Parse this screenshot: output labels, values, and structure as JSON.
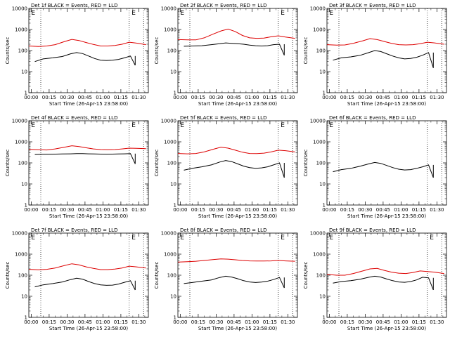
{
  "ylabel": "Counts/sec",
  "xlabel": "Start Time (26-Apr-15 23:58:00)",
  "x_ticks": [
    "00:00",
    "00:15",
    "00:30",
    "00:45",
    "01:00",
    "01:15",
    "01:30"
  ],
  "y_ticks": [
    "1",
    "10",
    "100",
    "1000",
    "10000"
  ],
  "colors": {
    "events": "#000000",
    "lld": "#dd0000"
  },
  "chart_data": [
    {
      "type": "line",
      "title": "Det 1f BLACK = Events, RED = LLD",
      "x_range_min": [
        0,
        100
      ],
      "ylim": [
        1,
        10000
      ],
      "y_scale": "log",
      "markers": [
        "E",
        "E"
      ],
      "vlines_min": [
        10,
        84,
        96
      ],
      "data_end_min": 89,
      "series": [
        {
          "name": "Events",
          "color": "#000000",
          "x": [
            5,
            12,
            20,
            28,
            35,
            40,
            45,
            50,
            55,
            60,
            65,
            70,
            75,
            80,
            85,
            89
          ],
          "y": [
            30,
            40,
            45,
            52,
            70,
            80,
            72,
            55,
            42,
            35,
            34,
            35,
            38,
            45,
            55,
            20
          ]
        },
        {
          "name": "LLD",
          "color": "#dd0000",
          "x": [
            0,
            8,
            15,
            22,
            30,
            36,
            42,
            48,
            54,
            60,
            66,
            72,
            78,
            84,
            90,
            98
          ],
          "y": [
            165,
            155,
            165,
            190,
            270,
            340,
            300,
            240,
            195,
            165,
            165,
            175,
            200,
            250,
            225,
            190
          ]
        }
      ]
    },
    {
      "type": "line",
      "title": "Det 2f BLACK = Events, RED = LLD",
      "x_range_min": [
        0,
        100
      ],
      "ylim": [
        1,
        10000
      ],
      "y_scale": "log",
      "markers": [
        "E",
        "E"
      ],
      "vlines_min": [
        10,
        84,
        96
      ],
      "data_end_min": 89,
      "series": [
        {
          "name": "Events",
          "color": "#000000",
          "x": [
            5,
            12,
            20,
            28,
            35,
            40,
            45,
            50,
            55,
            60,
            65,
            70,
            75,
            80,
            85,
            89
          ],
          "y": [
            160,
            165,
            170,
            190,
            210,
            230,
            220,
            210,
            200,
            180,
            170,
            165,
            170,
            190,
            200,
            60
          ]
        },
        {
          "name": "LLD",
          "color": "#dd0000",
          "x": [
            0,
            8,
            15,
            22,
            30,
            36,
            42,
            48,
            54,
            60,
            66,
            72,
            78,
            84,
            90,
            98
          ],
          "y": [
            330,
            320,
            320,
            400,
            620,
            850,
            1050,
            800,
            520,
            400,
            380,
            390,
            450,
            500,
            440,
            380
          ]
        }
      ]
    },
    {
      "type": "line",
      "title": "Det 3f BLACK = Events, RED = LLD",
      "x_range_min": [
        0,
        100
      ],
      "ylim": [
        1,
        10000
      ],
      "y_scale": "log",
      "markers": [
        "E"
      ],
      "vlines_min": [
        10,
        84,
        96
      ],
      "data_end_min": 89,
      "series": [
        {
          "name": "Events",
          "color": "#000000",
          "x": [
            5,
            12,
            20,
            28,
            35,
            40,
            45,
            50,
            55,
            60,
            65,
            70,
            75,
            80,
            85,
            89
          ],
          "y": [
            35,
            45,
            50,
            60,
            80,
            100,
            90,
            70,
            55,
            45,
            40,
            42,
            48,
            60,
            80,
            15
          ]
        },
        {
          "name": "LLD",
          "color": "#dd0000",
          "x": [
            0,
            8,
            15,
            22,
            30,
            36,
            42,
            48,
            54,
            60,
            66,
            72,
            78,
            84,
            90,
            98
          ],
          "y": [
            190,
            180,
            185,
            220,
            290,
            370,
            330,
            270,
            220,
            190,
            185,
            190,
            210,
            250,
            230,
            200
          ]
        }
      ]
    },
    {
      "type": "line",
      "title": "Det 4f BLACK = Events, RED = LLD",
      "x_range_min": [
        0,
        100
      ],
      "ylim": [
        1,
        10000
      ],
      "y_scale": "log",
      "markers": [
        "E",
        "E"
      ],
      "vlines_min": [
        10,
        84,
        96
      ],
      "data_end_min": 89,
      "series": [
        {
          "name": "Events",
          "color": "#000000",
          "x": [
            5,
            12,
            20,
            28,
            35,
            40,
            45,
            50,
            55,
            60,
            65,
            70,
            75,
            80,
            85,
            89
          ],
          "y": [
            250,
            255,
            260,
            265,
            270,
            275,
            275,
            270,
            265,
            262,
            260,
            262,
            265,
            270,
            275,
            90
          ]
        },
        {
          "name": "LLD",
          "color": "#dd0000",
          "x": [
            0,
            8,
            15,
            22,
            30,
            36,
            42,
            48,
            54,
            60,
            66,
            72,
            78,
            84,
            90,
            98
          ],
          "y": [
            440,
            420,
            410,
            460,
            560,
            650,
            600,
            520,
            460,
            430,
            420,
            430,
            460,
            500,
            490,
            470
          ]
        }
      ]
    },
    {
      "type": "line",
      "title": "Det 5f BLACK = Events, RED = LLD",
      "x_range_min": [
        0,
        100
      ],
      "ylim": [
        1,
        10000
      ],
      "y_scale": "log",
      "markers": [
        "E",
        "E"
      ],
      "vlines_min": [
        10,
        84,
        96
      ],
      "data_end_min": 89,
      "series": [
        {
          "name": "Events",
          "color": "#000000",
          "x": [
            5,
            12,
            20,
            28,
            35,
            40,
            45,
            50,
            55,
            60,
            65,
            70,
            75,
            80,
            85,
            89
          ],
          "y": [
            45,
            55,
            65,
            80,
            110,
            130,
            115,
            90,
            70,
            60,
            55,
            58,
            65,
            80,
            100,
            20
          ]
        },
        {
          "name": "LLD",
          "color": "#dd0000",
          "x": [
            0,
            8,
            15,
            22,
            30,
            36,
            42,
            48,
            54,
            60,
            66,
            72,
            78,
            84,
            90,
            98
          ],
          "y": [
            280,
            270,
            280,
            330,
            450,
            560,
            500,
            400,
            320,
            280,
            275,
            290,
            330,
            400,
            380,
            330
          ]
        }
      ]
    },
    {
      "type": "line",
      "title": "Det 6f BLACK = Events, RED = LLD",
      "x_range_min": [
        0,
        100
      ],
      "ylim": [
        1,
        10000
      ],
      "y_scale": "log",
      "markers": [
        "E"
      ],
      "vlines_min": [
        10,
        84,
        96
      ],
      "data_end_min": 89,
      "series": [
        {
          "name": "Events",
          "color": "#000000",
          "x": [
            5,
            12,
            20,
            28,
            35,
            40,
            45,
            50,
            55,
            60,
            65,
            70,
            75,
            80,
            85,
            89
          ],
          "y": [
            38,
            48,
            55,
            70,
            90,
            105,
            95,
            75,
            60,
            50,
            46,
            48,
            55,
            65,
            80,
            20
          ]
        }
      ]
    },
    {
      "type": "line",
      "title": "Det 7f BLACK = Events, RED = LLD",
      "x_range_min": [
        0,
        100
      ],
      "ylim": [
        1,
        10000
      ],
      "y_scale": "log",
      "markers": [
        "E",
        "E"
      ],
      "vlines_min": [
        10,
        84,
        96
      ],
      "data_end_min": 89,
      "series": [
        {
          "name": "Events",
          "color": "#000000",
          "x": [
            5,
            12,
            20,
            28,
            35,
            40,
            45,
            50,
            55,
            60,
            65,
            70,
            75,
            80,
            85,
            89
          ],
          "y": [
            28,
            35,
            40,
            48,
            62,
            72,
            65,
            50,
            40,
            35,
            33,
            34,
            38,
            46,
            55,
            20
          ]
        },
        {
          "name": "LLD",
          "color": "#dd0000",
          "x": [
            0,
            8,
            15,
            22,
            30,
            36,
            42,
            48,
            54,
            60,
            66,
            72,
            78,
            84,
            90,
            98
          ],
          "y": [
            190,
            180,
            190,
            220,
            290,
            350,
            310,
            250,
            210,
            185,
            185,
            195,
            220,
            270,
            250,
            220
          ]
        }
      ]
    },
    {
      "type": "line",
      "title": "Det 8f BLACK = Events, RED = LLD",
      "x_range_min": [
        0,
        100
      ],
      "ylim": [
        1,
        10000
      ],
      "y_scale": "log",
      "markers": [
        "E",
        "E"
      ],
      "vlines_min": [
        10,
        84,
        96
      ],
      "data_end_min": 89,
      "series": [
        {
          "name": "Events",
          "color": "#000000",
          "x": [
            5,
            12,
            20,
            28,
            35,
            40,
            45,
            50,
            55,
            60,
            65,
            70,
            75,
            80,
            85,
            89
          ],
          "y": [
            40,
            45,
            52,
            60,
            78,
            90,
            82,
            68,
            55,
            48,
            45,
            47,
            52,
            62,
            78,
            25
          ]
        },
        {
          "name": "LLD",
          "color": "#dd0000",
          "x": [
            0,
            8,
            15,
            22,
            30,
            36,
            42,
            48,
            54,
            60,
            66,
            72,
            78,
            84,
            90,
            98
          ],
          "y": [
            420,
            440,
            460,
            500,
            560,
            600,
            580,
            540,
            500,
            480,
            470,
            470,
            480,
            500,
            480,
            460
          ]
        }
      ]
    },
    {
      "type": "line",
      "title": "Det 9f BLACK = Events, RED = LLD",
      "x_range_min": [
        0,
        100
      ],
      "ylim": [
        1,
        10000
      ],
      "y_scale": "log",
      "markers": [
        "E",
        "E"
      ],
      "vlines_min": [
        10,
        84,
        96
      ],
      "data_end_min": 89,
      "series": [
        {
          "name": "Events",
          "color": "#000000",
          "x": [
            5,
            12,
            20,
            28,
            35,
            40,
            45,
            50,
            55,
            60,
            65,
            70,
            75,
            80,
            85,
            89
          ],
          "y": [
            42,
            50,
            55,
            65,
            80,
            90,
            82,
            66,
            55,
            48,
            46,
            50,
            60,
            80,
            75,
            20
          ]
        },
        {
          "name": "LLD",
          "color": "#dd0000",
          "x": [
            0,
            8,
            15,
            22,
            30,
            36,
            42,
            48,
            54,
            60,
            66,
            72,
            78,
            84,
            90,
            98
          ],
          "y": [
            110,
            100,
            100,
            120,
            160,
            200,
            210,
            170,
            140,
            125,
            120,
            135,
            160,
            150,
            140,
            120
          ]
        }
      ]
    }
  ]
}
